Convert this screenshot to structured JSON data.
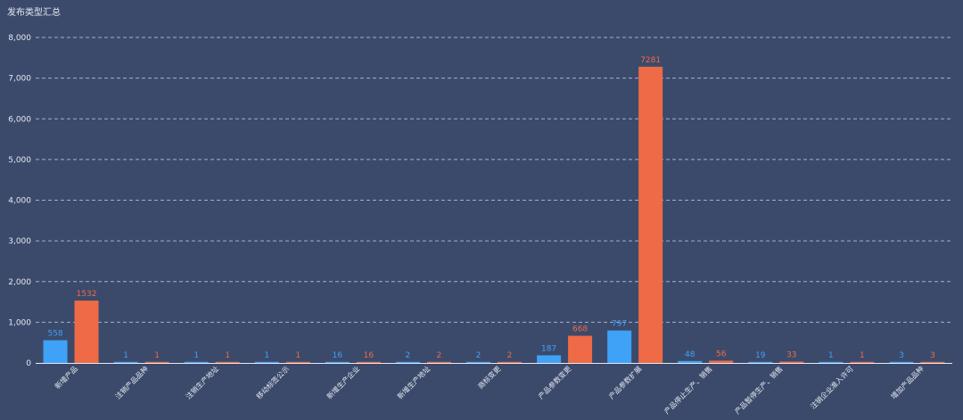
{
  "chart_data": {
    "type": "bar",
    "title": "发布类型汇总",
    "xlabel": "",
    "ylabel": "",
    "ylim": [
      0,
      8000
    ],
    "yticks": [
      "0",
      "1,000",
      "2,000",
      "3,000",
      "4,000",
      "5,000",
      "6,000",
      "7,000",
      "8,000"
    ],
    "categories": [
      "新增产品",
      "注销产品品种",
      "注销生产地址",
      "移动标签公示",
      "新增生产企业",
      "新增生产地址",
      "商标变更",
      "产品参数变更",
      "产品参数扩展",
      "产品停止生产、销售",
      "产品暂停生产、销售",
      "注销企业准入许可",
      "增加产品品种"
    ],
    "series": [
      {
        "values": [
          558,
          1,
          1,
          1,
          16,
          2,
          2,
          187,
          797,
          48,
          19,
          1,
          3
        ],
        "color": "#3fa2f7"
      },
      {
        "values": [
          1532,
          1,
          1,
          1,
          16,
          2,
          2,
          668,
          7281,
          56,
          33,
          1,
          3
        ],
        "color": "#ef6a46"
      }
    ],
    "grid": true,
    "legend": "none"
  }
}
